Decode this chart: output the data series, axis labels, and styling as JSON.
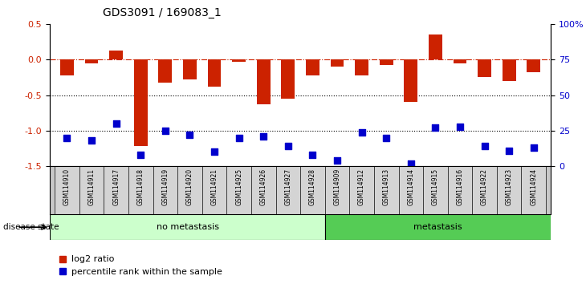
{
  "title": "GDS3091 / 169083_1",
  "samples": [
    "GSM114910",
    "GSM114911",
    "GSM114917",
    "GSM114918",
    "GSM114919",
    "GSM114920",
    "GSM114921",
    "GSM114925",
    "GSM114926",
    "GSM114927",
    "GSM114928",
    "GSM114909",
    "GSM114912",
    "GSM114913",
    "GSM114914",
    "GSM114915",
    "GSM114916",
    "GSM114922",
    "GSM114923",
    "GSM114924"
  ],
  "log2_ratio": [
    -0.22,
    -0.05,
    0.13,
    -1.22,
    -0.32,
    -0.28,
    -0.38,
    -0.03,
    -0.63,
    -0.55,
    -0.22,
    -0.1,
    -0.22,
    -0.08,
    -0.6,
    0.35,
    -0.05,
    -0.25,
    -0.3,
    -0.18
  ],
  "percentile_rank": [
    20,
    18,
    30,
    8,
    25,
    22,
    10,
    20,
    21,
    14,
    8,
    4,
    24,
    20,
    2,
    27,
    28,
    14,
    11,
    13
  ],
  "no_metastasis_count": 11,
  "group_no_metastasis": "no metastasis",
  "group_metastasis": "metastasis",
  "bar_color": "#cc2200",
  "dot_color": "#0000cc",
  "ylim_left": [
    -1.5,
    0.5
  ],
  "ylim_right": [
    0,
    100
  ],
  "yticks_left": [
    -1.5,
    -1.0,
    -0.5,
    0.0,
    0.5
  ],
  "yticks_right": [
    0,
    25,
    50,
    75,
    100
  ],
  "ytick_labels_right": [
    "0",
    "25",
    "50",
    "75",
    "100%"
  ],
  "hline_0": 0.0,
  "hline_m05": -0.5,
  "hline_m1": -1.0,
  "legend_log2": "log2 ratio",
  "legend_pct": "percentile rank within the sample",
  "color_no_meta": "#ccffcc",
  "color_meta": "#55cc55",
  "bar_width": 0.55,
  "dot_size": 35
}
